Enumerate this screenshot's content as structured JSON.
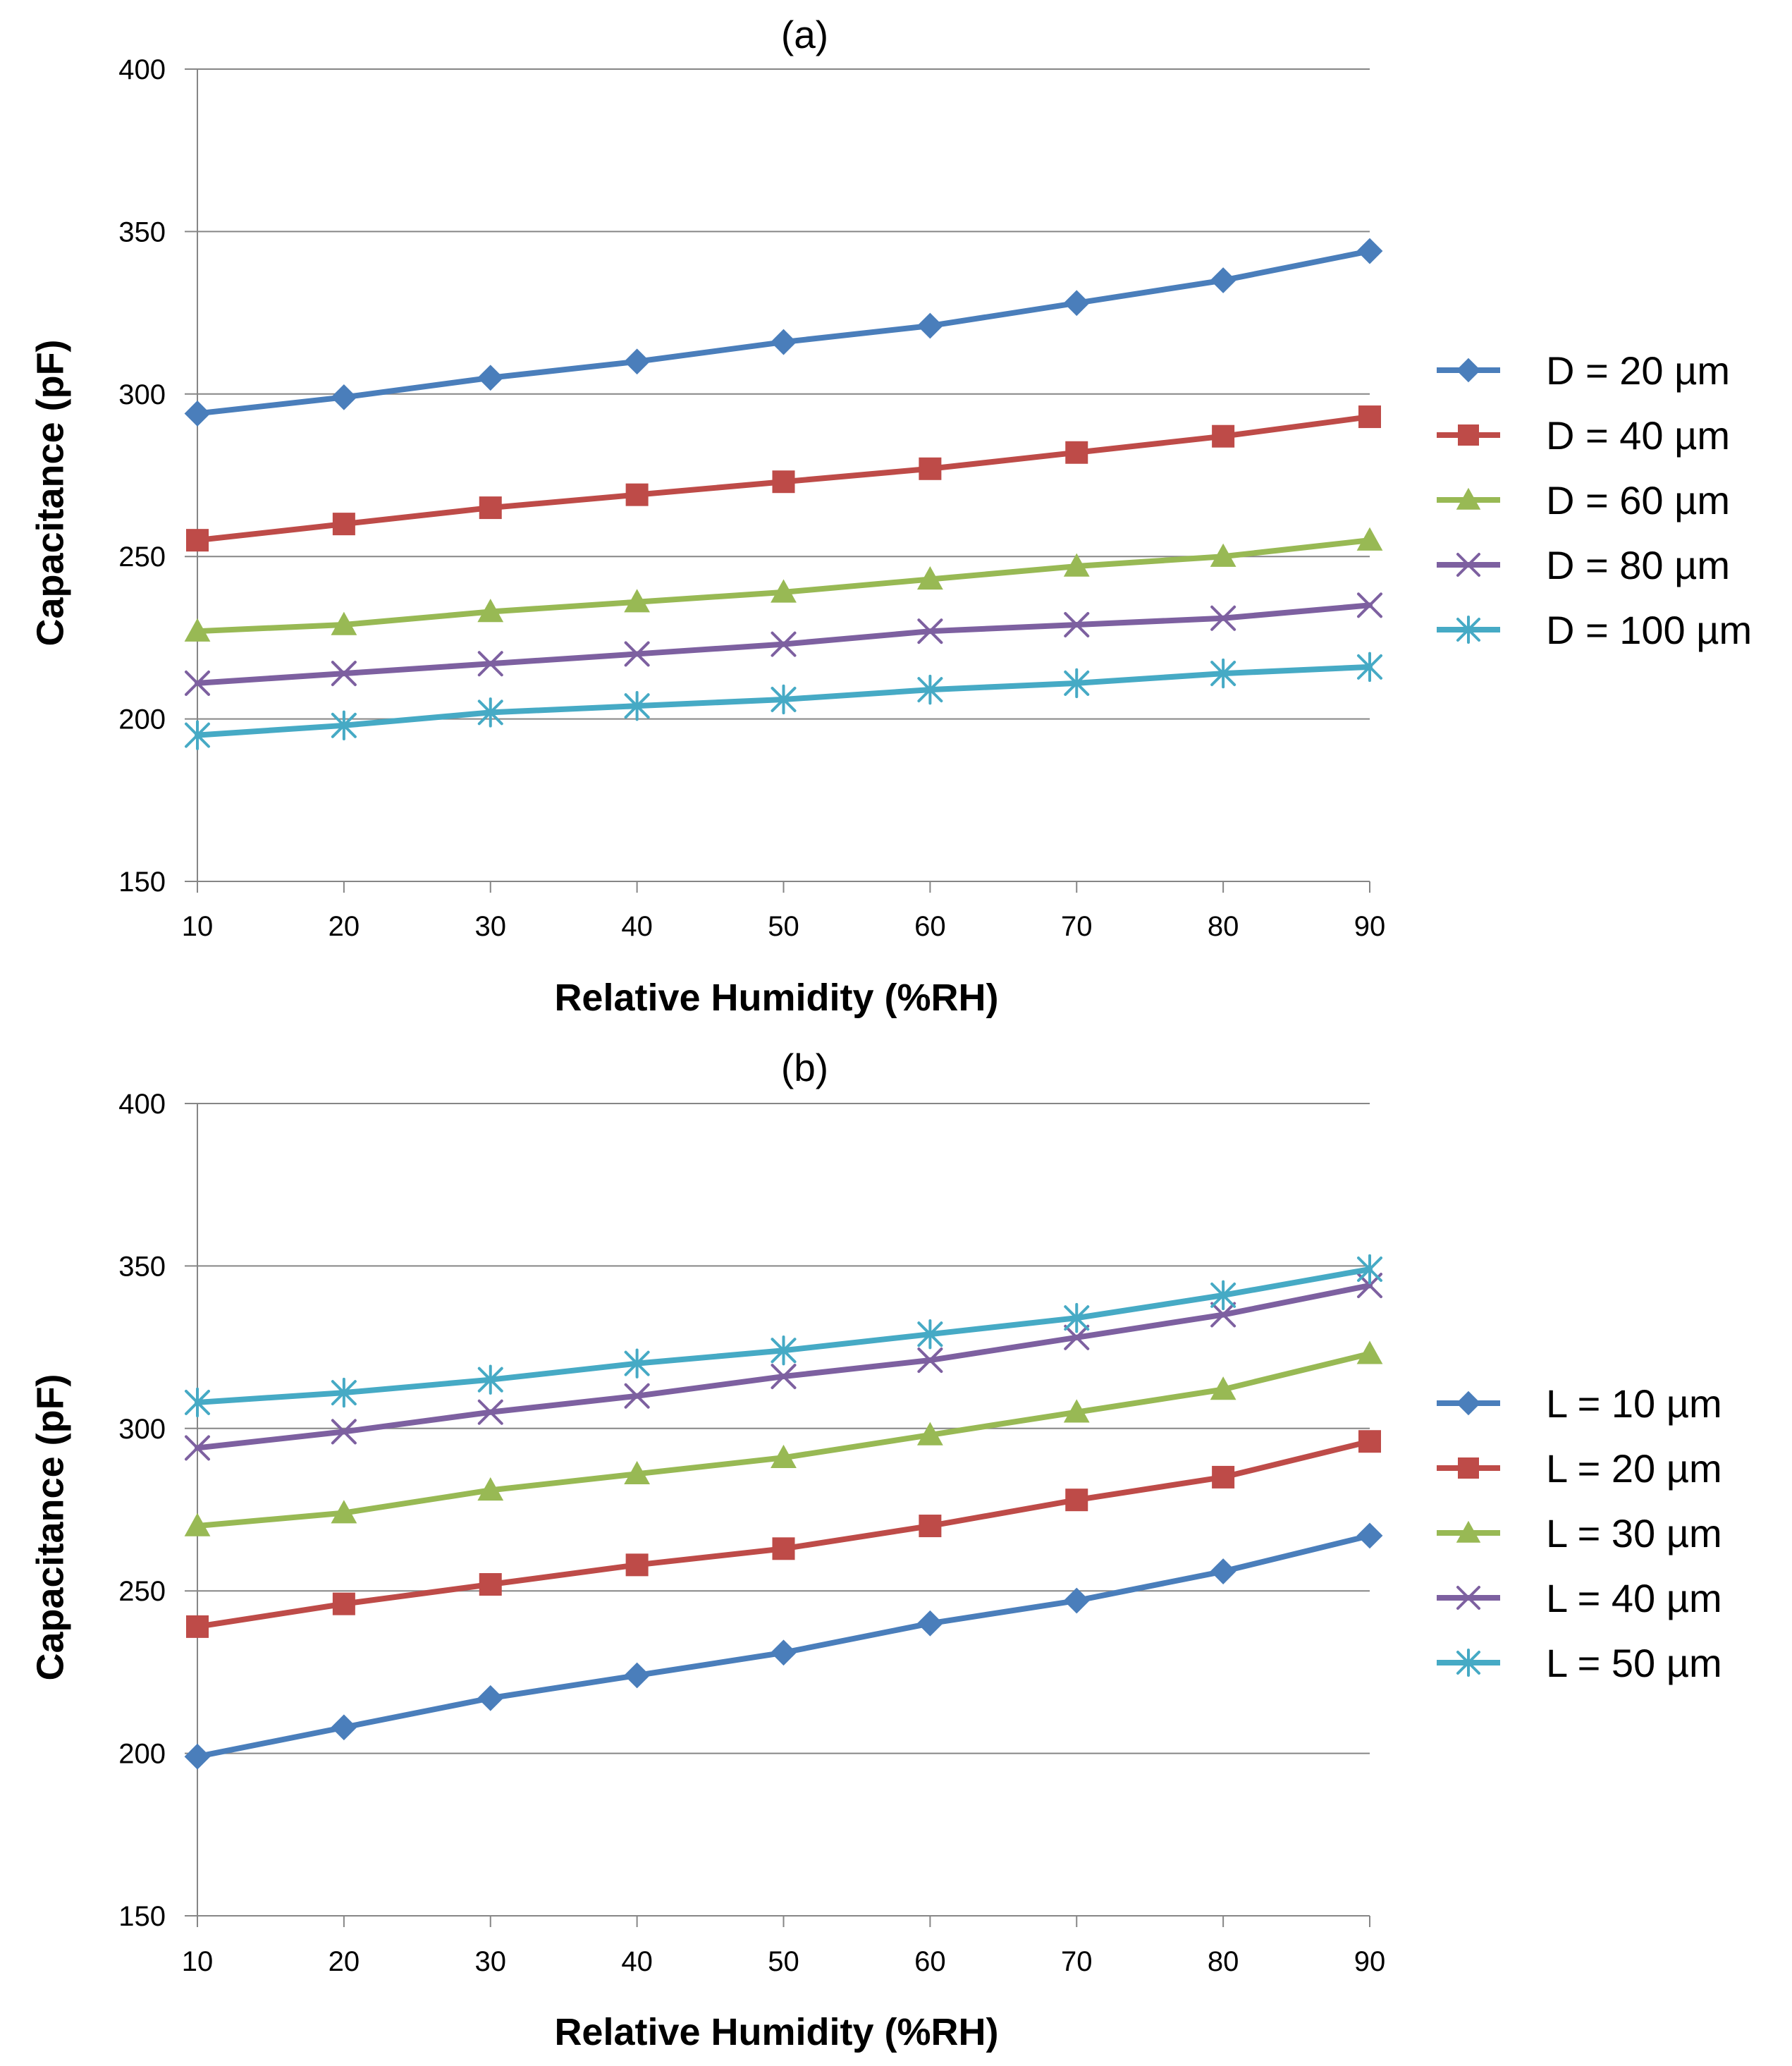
{
  "chart_data": [
    {
      "type": "line",
      "panel_label": "(a)",
      "xlabel": "Relative Humidity (%RH)",
      "ylabel": "Capacitance (pF)",
      "x": [
        10,
        20,
        30,
        40,
        50,
        60,
        70,
        80,
        90
      ],
      "x_ticks": [
        "10",
        "20",
        "30",
        "40",
        "50",
        "60",
        "70",
        "80",
        "90"
      ],
      "ylim": [
        150,
        400
      ],
      "y_ticks": [
        "150",
        "200",
        "250",
        "300",
        "350",
        "400"
      ],
      "grid": "horizontal",
      "legend_position": "right",
      "series": [
        {
          "name": "D = 20 µm",
          "marker": "diamond",
          "color": "#4A7EBB",
          "values": [
            294,
            299,
            305,
            310,
            316,
            321,
            328,
            335,
            344
          ]
        },
        {
          "name": "D = 40 µm",
          "marker": "square",
          "color": "#BE4B48",
          "values": [
            255,
            260,
            265,
            269,
            273,
            277,
            282,
            287,
            293
          ]
        },
        {
          "name": "D = 60 µm",
          "marker": "triangle",
          "color": "#98B954",
          "values": [
            227,
            229,
            233,
            236,
            239,
            243,
            247,
            250,
            255
          ]
        },
        {
          "name": "D = 80 µm",
          "marker": "x",
          "color": "#7D60A0",
          "values": [
            211,
            214,
            217,
            220,
            223,
            227,
            229,
            231,
            235
          ]
        },
        {
          "name": "D = 100 µm",
          "marker": "star",
          "color": "#46AAC5",
          "values": [
            195,
            198,
            202,
            204,
            206,
            209,
            211,
            214,
            216
          ]
        }
      ]
    },
    {
      "type": "line",
      "panel_label": "(b)",
      "xlabel": "Relative Humidity (%RH)",
      "ylabel": "Capacitance (pF)",
      "x": [
        10,
        20,
        30,
        40,
        50,
        60,
        70,
        80,
        90
      ],
      "x_ticks": [
        "10",
        "20",
        "30",
        "40",
        "50",
        "60",
        "70",
        "80",
        "90"
      ],
      "ylim": [
        150,
        400
      ],
      "y_ticks": [
        "150",
        "200",
        "250",
        "300",
        "350",
        "400"
      ],
      "grid": "horizontal",
      "legend_position": "right",
      "series": [
        {
          "name": "L = 10 µm",
          "marker": "diamond",
          "color": "#4A7EBB",
          "values": [
            199,
            208,
            217,
            224,
            231,
            240,
            247,
            256,
            267
          ]
        },
        {
          "name": "L = 20 µm",
          "marker": "square",
          "color": "#BE4B48",
          "values": [
            239,
            246,
            252,
            258,
            263,
            270,
            278,
            285,
            296
          ]
        },
        {
          "name": "L = 30 µm",
          "marker": "triangle",
          "color": "#98B954",
          "values": [
            270,
            274,
            281,
            286,
            291,
            298,
            305,
            312,
            323
          ]
        },
        {
          "name": "L = 40 µm",
          "marker": "x",
          "color": "#7D60A0",
          "values": [
            294,
            299,
            305,
            310,
            316,
            321,
            328,
            335,
            344
          ]
        },
        {
          "name": "L = 50 µm",
          "marker": "star",
          "color": "#46AAC5",
          "values": [
            308,
            311,
            315,
            320,
            324,
            329,
            334,
            341,
            349
          ]
        }
      ]
    }
  ]
}
